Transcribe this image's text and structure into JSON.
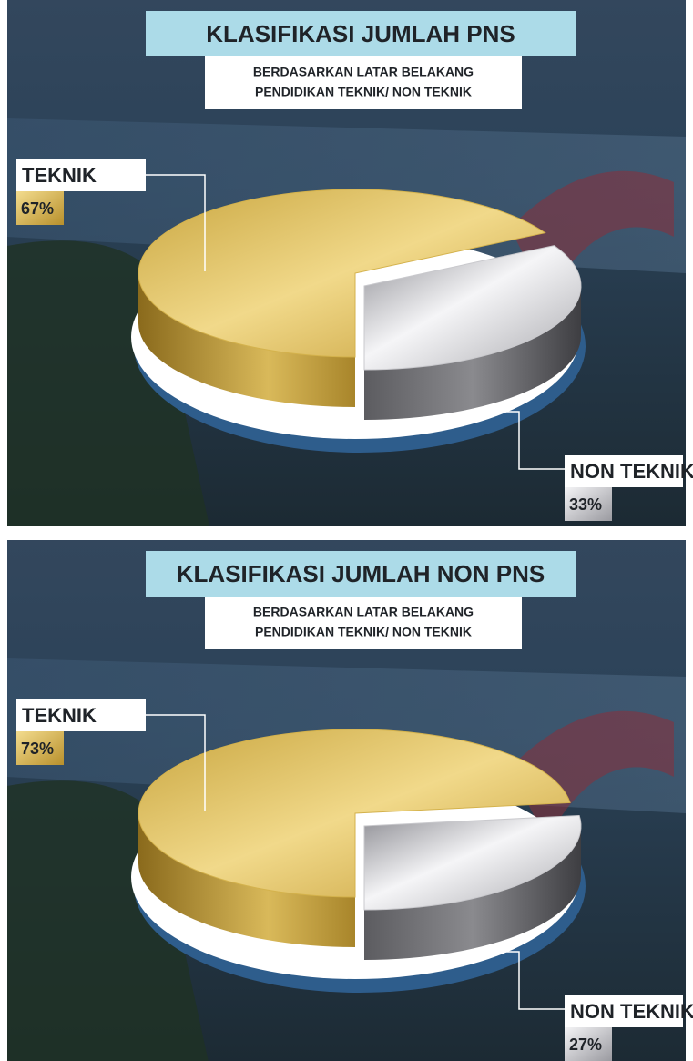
{
  "chart_data": [
    {
      "type": "pie",
      "title": "KLASIFIKASI JUMLAH PNS",
      "subtitle": [
        "BERDASARKAN LATAR BELAKANG",
        "PENDIDIKAN TEKNIK/ NON TEKNIK"
      ],
      "categories": [
        "TEKNIK",
        "NON TEKNIK"
      ],
      "values": [
        67,
        33
      ],
      "value_labels": [
        "67%",
        "33%"
      ],
      "colors": [
        "#d4b24c",
        "#c9c9cd"
      ]
    },
    {
      "type": "pie",
      "title": "KLASIFIKASI JUMLAH NON PNS",
      "subtitle": [
        "BERDASARKAN LATAR BELAKANG",
        "PENDIDIKAN TEKNIK/ NON TEKNIK"
      ],
      "categories": [
        "TEKNIK",
        "NON TEKNIK"
      ],
      "values": [
        73,
        27
      ],
      "value_labels": [
        "73%",
        "27%"
      ],
      "colors": [
        "#d4b24c",
        "#c9c9cd"
      ]
    }
  ]
}
